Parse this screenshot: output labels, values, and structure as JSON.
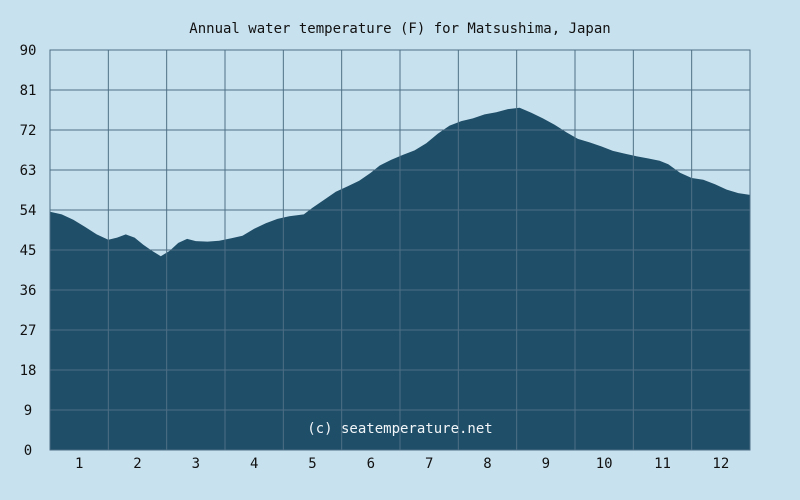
{
  "chart_data": {
    "type": "area",
    "title": "Annual water temperature (F) for Matsushima, Japan",
    "xlabel": "",
    "ylabel": "",
    "x_tick_labels": [
      "1",
      "2",
      "3",
      "4",
      "5",
      "6",
      "7",
      "8",
      "9",
      "10",
      "11",
      "12"
    ],
    "y_tick_labels": [
      "0",
      "9",
      "18",
      "27",
      "36",
      "45",
      "54",
      "63",
      "72",
      "81",
      "90"
    ],
    "ylim": [
      0,
      90
    ],
    "xlim": [
      0.5,
      12.5
    ],
    "grid": true,
    "series": [
      {
        "color": "#1f4e69",
        "points": [
          [
            0.5,
            53.6
          ],
          [
            0.7,
            53.0
          ],
          [
            0.9,
            51.8
          ],
          [
            1.1,
            50.2
          ],
          [
            1.3,
            48.5
          ],
          [
            1.5,
            47.3
          ],
          [
            1.65,
            47.8
          ],
          [
            1.8,
            48.5
          ],
          [
            1.95,
            47.8
          ],
          [
            2.1,
            46.2
          ],
          [
            2.25,
            44.8
          ],
          [
            2.4,
            43.6
          ],
          [
            2.55,
            44.8
          ],
          [
            2.7,
            46.6
          ],
          [
            2.85,
            47.5
          ],
          [
            3.0,
            47.0
          ],
          [
            3.2,
            46.9
          ],
          [
            3.4,
            47.1
          ],
          [
            3.6,
            47.6
          ],
          [
            3.8,
            48.2
          ],
          [
            4.0,
            49.8
          ],
          [
            4.2,
            51.0
          ],
          [
            4.4,
            52.0
          ],
          [
            4.6,
            52.6
          ],
          [
            4.85,
            53.0
          ],
          [
            5.0,
            54.5
          ],
          [
            5.2,
            56.3
          ],
          [
            5.4,
            58.1
          ],
          [
            5.6,
            59.3
          ],
          [
            5.8,
            60.6
          ],
          [
            6.0,
            62.4
          ],
          [
            6.15,
            64.0
          ],
          [
            6.35,
            65.3
          ],
          [
            6.55,
            66.4
          ],
          [
            6.75,
            67.4
          ],
          [
            6.95,
            69.0
          ],
          [
            7.15,
            71.2
          ],
          [
            7.35,
            73.0
          ],
          [
            7.55,
            74.0
          ],
          [
            7.75,
            74.6
          ],
          [
            7.95,
            75.5
          ],
          [
            8.15,
            76.0
          ],
          [
            8.35,
            76.7
          ],
          [
            8.55,
            77.0
          ],
          [
            8.75,
            75.9
          ],
          [
            8.95,
            74.6
          ],
          [
            9.15,
            73.2
          ],
          [
            9.35,
            71.5
          ],
          [
            9.55,
            70.0
          ],
          [
            9.75,
            69.2
          ],
          [
            9.95,
            68.3
          ],
          [
            10.15,
            67.3
          ],
          [
            10.35,
            66.7
          ],
          [
            10.55,
            66.1
          ],
          [
            10.75,
            65.6
          ],
          [
            10.95,
            65.1
          ],
          [
            11.1,
            64.3
          ],
          [
            11.3,
            62.4
          ],
          [
            11.5,
            61.2
          ],
          [
            11.7,
            60.8
          ],
          [
            11.9,
            59.8
          ],
          [
            12.1,
            58.6
          ],
          [
            12.3,
            57.8
          ],
          [
            12.5,
            57.4
          ]
        ]
      }
    ],
    "colors": {
      "background": "#c8e1ee",
      "plot_background": "#c8e1ee",
      "fill": "#1f4e69",
      "grid": "#4e6f85"
    },
    "watermark": "(c) seatemperature.net"
  }
}
